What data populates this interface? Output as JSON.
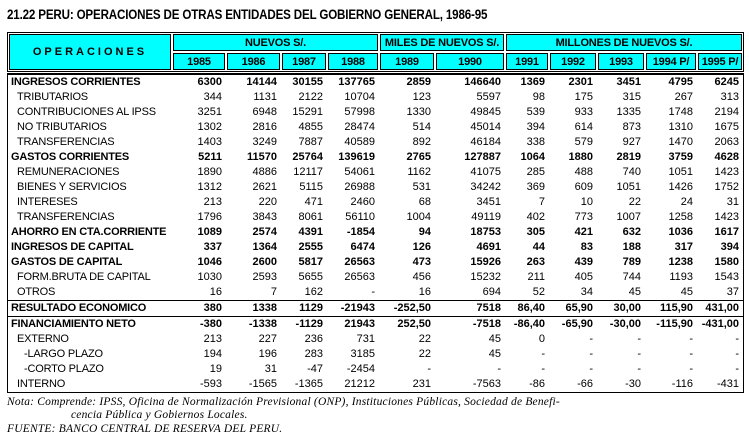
{
  "title": "21.22  PERU: OPERACIONES DE OTRAS ENTIDADES DEL GOBIERNO GENERAL, 1986-95",
  "colors": {
    "header_bg": "#00ffff",
    "border": "#000000",
    "text": "#000000",
    "page_bg": "#ffffff"
  },
  "table": {
    "operaciones_header": "OPERACIONES",
    "unit_groups": [
      {
        "label": "NUEVOS S/.",
        "span": 4
      },
      {
        "label": "MILES DE NUEVOS S/.",
        "span": 2
      },
      {
        "label": "MILLONES DE NUEVOS S/.",
        "span": 5
      }
    ],
    "years": [
      "1985",
      "1986",
      "1987",
      "1988",
      "1989",
      "1990",
      "1991",
      "1992",
      "1993",
      "1994 P/",
      "1995 P/"
    ],
    "rows": [
      {
        "label": "INGRESOS CORRIENTES",
        "bold": true,
        "indent": 0,
        "rule_above": false,
        "values": [
          "6300",
          "14144",
          "30155",
          "137765",
          "2859",
          "146640",
          "1369",
          "2301",
          "3451",
          "4795",
          "6245"
        ]
      },
      {
        "label": "TRIBUTARIOS",
        "bold": false,
        "indent": 1,
        "rule_above": false,
        "values": [
          "344",
          "1131",
          "2122",
          "10704",
          "123",
          "5597",
          "98",
          "175",
          "315",
          "267",
          "313"
        ]
      },
      {
        "label": "CONTRIBUCIONES AL IPSS",
        "bold": false,
        "indent": 1,
        "rule_above": false,
        "values": [
          "3251",
          "6948",
          "15291",
          "57998",
          "1330",
          "49845",
          "539",
          "933",
          "1335",
          "1748",
          "2194"
        ]
      },
      {
        "label": "NO TRIBUTARIOS",
        "bold": false,
        "indent": 1,
        "rule_above": false,
        "values": [
          "1302",
          "2816",
          "4855",
          "28474",
          "514",
          "45014",
          "394",
          "614",
          "873",
          "1310",
          "1675"
        ]
      },
      {
        "label": "TRANSFERENCIAS",
        "bold": false,
        "indent": 1,
        "rule_above": false,
        "values": [
          "1403",
          "3249",
          "7887",
          "40589",
          "892",
          "46184",
          "338",
          "579",
          "927",
          "1470",
          "2063"
        ]
      },
      {
        "label": "GASTOS CORRIENTES",
        "bold": true,
        "indent": 0,
        "rule_above": false,
        "values": [
          "5211",
          "11570",
          "25764",
          "139619",
          "2765",
          "127887",
          "1064",
          "1880",
          "2819",
          "3759",
          "4628"
        ]
      },
      {
        "label": "REMUNERACIONES",
        "bold": false,
        "indent": 1,
        "rule_above": false,
        "values": [
          "1890",
          "4886",
          "12117",
          "54061",
          "1162",
          "41075",
          "285",
          "488",
          "740",
          "1051",
          "1423"
        ]
      },
      {
        "label": "BIENES Y SERVICIOS",
        "bold": false,
        "indent": 1,
        "rule_above": false,
        "values": [
          "1312",
          "2621",
          "5115",
          "26988",
          "531",
          "34242",
          "369",
          "609",
          "1051",
          "1426",
          "1752"
        ]
      },
      {
        "label": "INTERESES",
        "bold": false,
        "indent": 1,
        "rule_above": false,
        "values": [
          "213",
          "220",
          "471",
          "2460",
          "68",
          "3451",
          "7",
          "10",
          "22",
          "24",
          "31"
        ]
      },
      {
        "label": "TRANSFERENCIAS",
        "bold": false,
        "indent": 1,
        "rule_above": false,
        "values": [
          "1796",
          "3843",
          "8061",
          "56110",
          "1004",
          "49119",
          "402",
          "773",
          "1007",
          "1258",
          "1423"
        ]
      },
      {
        "label": "AHORRO EN CTA.CORRIENTE",
        "bold": true,
        "indent": 0,
        "rule_above": false,
        "values": [
          "1089",
          "2574",
          "4391",
          "-1854",
          "94",
          "18753",
          "305",
          "421",
          "632",
          "1036",
          "1617"
        ]
      },
      {
        "label": "INGRESOS DE CAPITAL",
        "bold": true,
        "indent": 0,
        "rule_above": false,
        "values": [
          "337",
          "1364",
          "2555",
          "6474",
          "126",
          "4691",
          "44",
          "83",
          "188",
          "317",
          "394"
        ]
      },
      {
        "label": "GASTOS DE CAPITAL",
        "bold": true,
        "indent": 0,
        "rule_above": false,
        "values": [
          "1046",
          "2600",
          "5817",
          "26563",
          "473",
          "15926",
          "263",
          "439",
          "789",
          "1238",
          "1580"
        ]
      },
      {
        "label": "FORM.BRUTA DE CAPITAL",
        "bold": false,
        "indent": 1,
        "rule_above": false,
        "values": [
          "1030",
          "2593",
          "5655",
          "26563",
          "456",
          "15232",
          "211",
          "405",
          "744",
          "1193",
          "1543"
        ]
      },
      {
        "label": "OTROS",
        "bold": false,
        "indent": 1,
        "rule_above": false,
        "values": [
          "16",
          "7",
          "162",
          "-",
          "16",
          "694",
          "52",
          "34",
          "45",
          "45",
          "37"
        ]
      },
      {
        "label": "RESULTADO ECONOMICO",
        "bold": true,
        "indent": 0,
        "rule_above": true,
        "values": [
          "380",
          "1338",
          "1129",
          "-21943",
          "-252,50",
          "7518",
          "86,40",
          "65,90",
          "30,00",
          "115,90",
          "431,00"
        ]
      },
      {
        "label": "FINANCIAMIENTO NETO",
        "bold": true,
        "indent": 0,
        "rule_above": true,
        "values": [
          "-380",
          "-1338",
          "-1129",
          "21943",
          "252,50",
          "-7518",
          "-86,40",
          "-65,90",
          "-30,00",
          "-115,90",
          "-431,00"
        ]
      },
      {
        "label": "EXTERNO",
        "bold": false,
        "indent": 1,
        "rule_above": false,
        "values": [
          "213",
          "227",
          "236",
          "731",
          "22",
          "45",
          "0",
          "-",
          "-",
          "-",
          "-"
        ]
      },
      {
        "label": "-LARGO PLAZO",
        "bold": false,
        "indent": 2,
        "rule_above": false,
        "values": [
          "194",
          "196",
          "283",
          "3185",
          "22",
          "45",
          "-",
          "-",
          "-",
          "-",
          "-"
        ]
      },
      {
        "label": "-CORTO PLAZO",
        "bold": false,
        "indent": 2,
        "rule_above": false,
        "values": [
          "19",
          "31",
          "-47",
          "-2454",
          "-",
          "-",
          "-",
          "-",
          "-",
          "-",
          "-"
        ]
      },
      {
        "label": "INTERNO",
        "bold": false,
        "indent": 1,
        "rule_above": false,
        "values": [
          "-593",
          "-1565",
          "-1365",
          "21212",
          "231",
          "-7563",
          "-86",
          "-66",
          "-30",
          "-116",
          "-431"
        ]
      }
    ]
  },
  "notes": {
    "line1": "Nota:  Comprende:  IPSS,  Oficina de Normalización Previsional (ONP),  Instituciones Públicas,   Sociedad  de Benefi-",
    "line2": "cencia Pública  y   Gobiernos Locales.",
    "fuente": "FUENTE:  BANCO CENTRAL DE RESERVA DEL PERU."
  }
}
